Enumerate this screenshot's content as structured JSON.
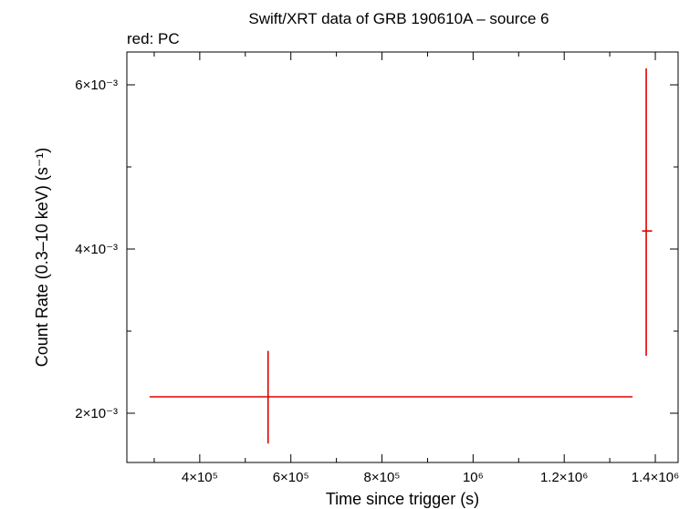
{
  "chart_data": {
    "type": "scatter",
    "title": "Swift/XRT data of GRB 190610A – source 6",
    "subtitle": "red: PC",
    "xlabel": "Time since trigger (s)",
    "ylabel": "Count Rate (0.3–10 keV) (s⁻¹)",
    "x_scale": "linear",
    "y_scale": "linear",
    "xlim": [
      240000,
      1450000
    ],
    "ylim": [
      0.0014,
      0.0064
    ],
    "x_ticks": [
      {
        "value": 400000,
        "label": "4×10⁵"
      },
      {
        "value": 600000,
        "label": "6×10⁵"
      },
      {
        "value": 800000,
        "label": "8×10⁵"
      },
      {
        "value": 1000000,
        "label": "10⁶"
      },
      {
        "value": 1200000,
        "label": "1.2×10⁶"
      },
      {
        "value": 1400000,
        "label": "1.4×10⁶"
      }
    ],
    "y_ticks": [
      {
        "value": 0.002,
        "label": "2×10⁻³"
      },
      {
        "value": 0.004,
        "label": "4×10⁻³"
      },
      {
        "value": 0.006,
        "label": "6×10⁻³"
      }
    ],
    "grid": false,
    "series": [
      {
        "name": "PC",
        "color": "#e00000",
        "points": [
          {
            "x": 550000,
            "x_lo": 290000,
            "x_hi": 1350000,
            "y": 0.0022,
            "y_lo": 0.00163,
            "y_hi": 0.00276
          },
          {
            "x": 1380000,
            "x_lo": 1371000,
            "x_hi": 1393000,
            "y": 0.00422,
            "y_lo": 0.0027,
            "y_hi": 0.0062
          }
        ]
      }
    ]
  }
}
